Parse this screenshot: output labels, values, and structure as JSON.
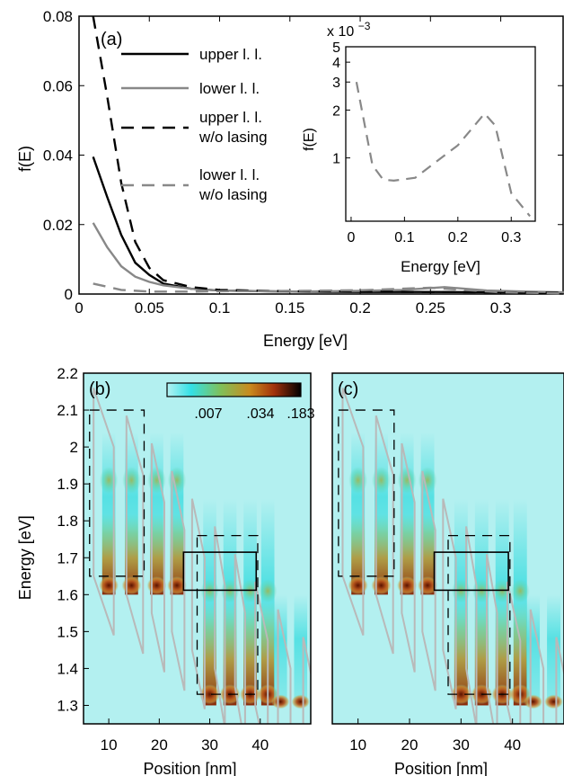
{
  "chart_data": [
    {
      "panel": "(a)",
      "type": "line",
      "xlabel": "Energy [eV]",
      "ylabel": "f(E)",
      "xlim": [
        0,
        0.345
      ],
      "ylim": [
        0,
        0.08
      ],
      "xticks": [
        "0",
        "0.05",
        "0.1",
        "0.15",
        "0.2",
        "0.25",
        "0.3"
      ],
      "xtick_values": [
        0,
        0.05,
        0.1,
        0.15,
        0.2,
        0.25,
        0.3
      ],
      "yticks": [
        "0",
        "0.02",
        "0.04",
        "0.06",
        "0.08"
      ],
      "ytick_values": [
        0,
        0.02,
        0.04,
        0.06,
        0.08
      ],
      "series": [
        {
          "name": "upper l. l.",
          "line1": "upper l. l.",
          "line2": "",
          "color": "#000000",
          "dash": "solid",
          "x": [
            0.01,
            0.02,
            0.03,
            0.04,
            0.05,
            0.06,
            0.08,
            0.1,
            0.15,
            0.2,
            0.25,
            0.3,
            0.345
          ],
          "y": [
            0.0395,
            0.028,
            0.017,
            0.009,
            0.0055,
            0.003,
            0.0015,
            0.001,
            0.0007,
            0.0006,
            0.0006,
            0.0005,
            0.0004
          ]
        },
        {
          "name": "lower l. l.",
          "line1": "lower l. l.",
          "line2": "",
          "color": "#888888",
          "dash": "solid",
          "x": [
            0.01,
            0.02,
            0.03,
            0.04,
            0.05,
            0.06,
            0.08,
            0.1,
            0.15,
            0.2,
            0.23,
            0.26,
            0.29,
            0.32,
            0.345
          ],
          "y": [
            0.0205,
            0.0135,
            0.008,
            0.005,
            0.0035,
            0.0025,
            0.0015,
            0.001,
            0.0007,
            0.0009,
            0.0012,
            0.002,
            0.001,
            0.0007,
            0.0005
          ]
        },
        {
          "name": "upper l. l. w/o lasing",
          "line1": "upper l. l.",
          "line2": "w/o lasing",
          "color": "#000000",
          "dash": "long",
          "x": [
            0.01,
            0.02,
            0.03,
            0.04,
            0.05,
            0.06,
            0.08,
            0.1,
            0.15,
            0.2,
            0.25,
            0.3,
            0.345
          ],
          "y": [
            0.08,
            0.057,
            0.032,
            0.015,
            0.0075,
            0.004,
            0.002,
            0.0012,
            0.0008,
            0.0007,
            0.0006,
            0.0005,
            0.0004
          ]
        },
        {
          "name": "lower l. l. w/o lasing",
          "line1": "lower l. l.",
          "line2": "w/o lasing",
          "color": "#888888",
          "dash": "long",
          "x": [
            0.01,
            0.03,
            0.05,
            0.08,
            0.1,
            0.15,
            0.2,
            0.25,
            0.3,
            0.345
          ],
          "y": [
            0.003,
            0.0012,
            0.0007,
            0.0007,
            0.0008,
            0.0009,
            0.0011,
            0.0018,
            0.0005,
            0.0002
          ]
        }
      ],
      "inset": {
        "type": "line",
        "xlabel": "Energy [eV]",
        "ylabel": "f(E)",
        "scale_note": "x 10",
        "scale_exp": "−3",
        "yscale": "log",
        "xlim": [
          -0.01,
          0.345
        ],
        "ylim": [
          0.4,
          5
        ],
        "xticks": [
          "0",
          "0.1",
          "0.2",
          "0.3"
        ],
        "xtick_values": [
          0,
          0.1,
          0.2,
          0.3
        ],
        "yticks": [
          "1",
          "2",
          "3",
          "4",
          "5"
        ],
        "ytick_values": [
          1,
          2,
          3,
          4,
          5
        ],
        "series": [
          {
            "color": "#888888",
            "dash": "long",
            "x": [
              0.01,
              0.04,
              0.06,
              0.08,
              0.12,
              0.16,
              0.2,
              0.25,
              0.27,
              0.3,
              0.335
            ],
            "y": [
              3.0,
              0.9,
              0.73,
              0.72,
              0.75,
              0.95,
              1.2,
              1.9,
              1.6,
              0.6,
              0.43
            ]
          }
        ]
      }
    },
    {
      "panel": "(b)",
      "type": "heatmap",
      "xlabel": "Position [nm]",
      "ylabel": "Energy [eV]",
      "xlim": [
        5,
        50
      ],
      "ylim": [
        1.25,
        2.2
      ],
      "xticks": [
        "10",
        "20",
        "30",
        "40"
      ],
      "xtick_values": [
        10,
        20,
        30,
        40
      ],
      "yticks": [
        "1.3",
        "1.4",
        "1.5",
        "1.6",
        "1.7",
        "1.8",
        "1.9",
        "2",
        "2.1",
        "2.2"
      ],
      "ytick_values": [
        1.3,
        1.4,
        1.5,
        1.6,
        1.7,
        1.8,
        1.9,
        2.0,
        2.1,
        2.2
      ],
      "colorbar_labels": [
        ".007",
        ".034",
        ".183"
      ]
    },
    {
      "panel": "(c)",
      "type": "heatmap",
      "xlabel": "Position [nm]",
      "xlim": [
        5,
        50
      ],
      "ylim": [
        1.25,
        2.2
      ],
      "xticks": [
        "10",
        "20",
        "30",
        "40"
      ],
      "xtick_values": [
        10,
        20,
        30,
        40
      ]
    }
  ]
}
